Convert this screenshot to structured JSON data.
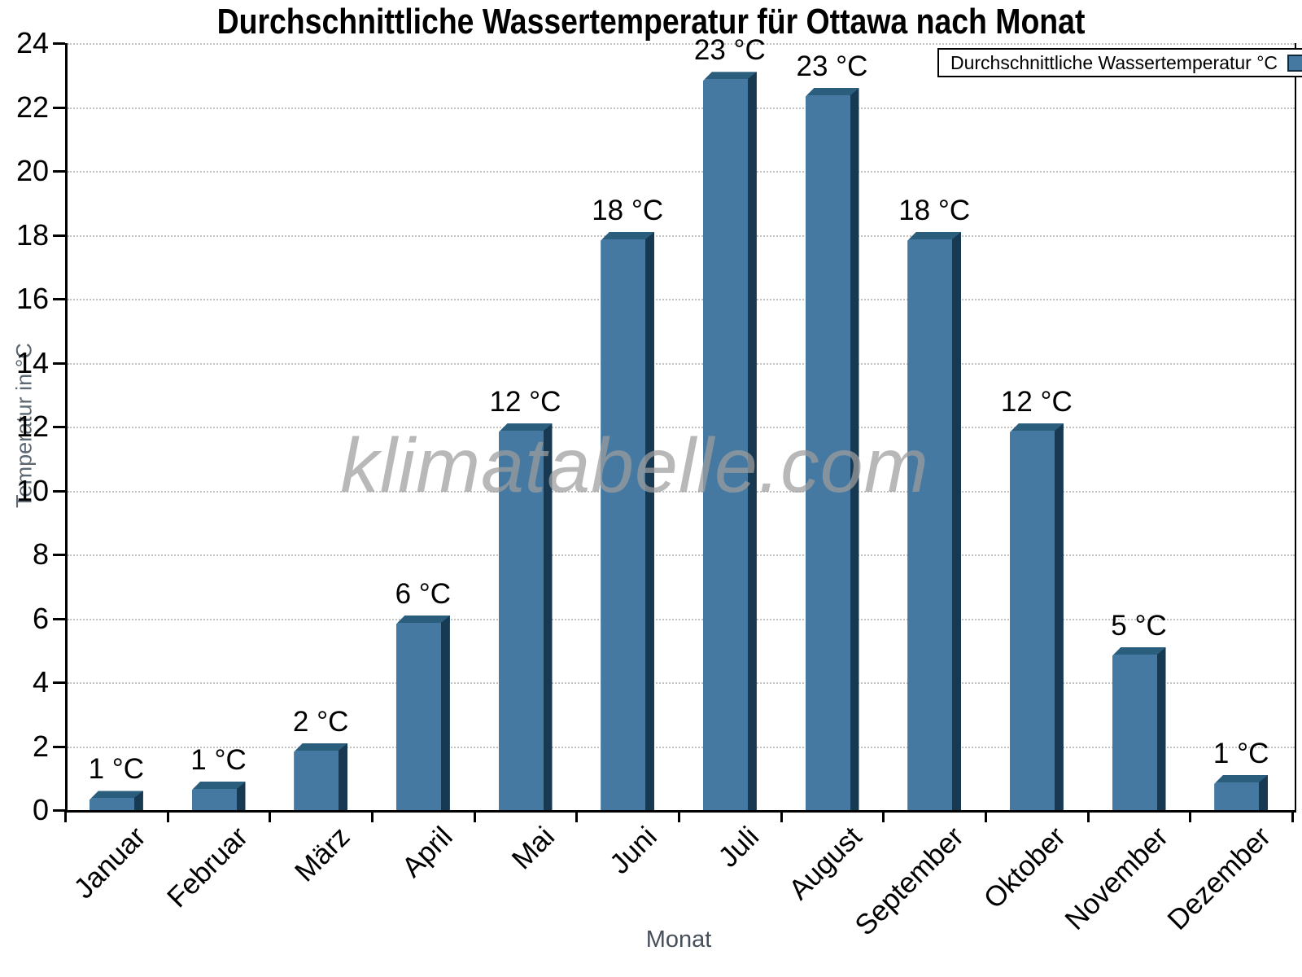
{
  "title": "Durchschnittliche Wassertemperatur für Ottawa nach Monat",
  "watermark": "klimatabelle.com",
  "xlabel": "Monat",
  "ylabel": "Temperatur in °C",
  "legend": {
    "label": "Durchschnittliche Wassertemperatur °C"
  },
  "chart_data": {
    "type": "bar",
    "title": "Durchschnittliche Wassertemperatur für Ottawa nach Monat",
    "xlabel": "Monat",
    "ylabel": "Temperatur in °C",
    "categories": [
      "Januar",
      "Februar",
      "März",
      "April",
      "Mai",
      "Juni",
      "Juli",
      "August",
      "September",
      "Oktober",
      "November",
      "Dezember"
    ],
    "values": [
      0.6,
      0.9,
      2.1,
      6.1,
      12.1,
      18.1,
      23.1,
      22.6,
      18.1,
      12.1,
      5.1,
      1.1
    ],
    "bar_labels": [
      "1 °C",
      "1 °C",
      "2 °C",
      "6 °C",
      "12 °C",
      "18 °C",
      "23 °C",
      "23 °C",
      "18 °C",
      "12 °C",
      "5 °C",
      "1 °C"
    ],
    "ylim": [
      0,
      24
    ],
    "yticks": [
      0,
      2,
      4,
      6,
      8,
      10,
      12,
      14,
      16,
      18,
      20,
      22,
      24
    ],
    "grid": "horizontal-dotted",
    "legend": "Durchschnittliche Wassertemperatur °C",
    "legend_position": "top-right",
    "colors": {
      "bar_face": "#4579A1",
      "bar_top": "#2B5D7D",
      "bar_side": "#173A52",
      "grid": "#C3C3C3",
      "axis": "#000000",
      "axis_label": "#5C6873",
      "watermark": "#9E9E9E"
    }
  }
}
